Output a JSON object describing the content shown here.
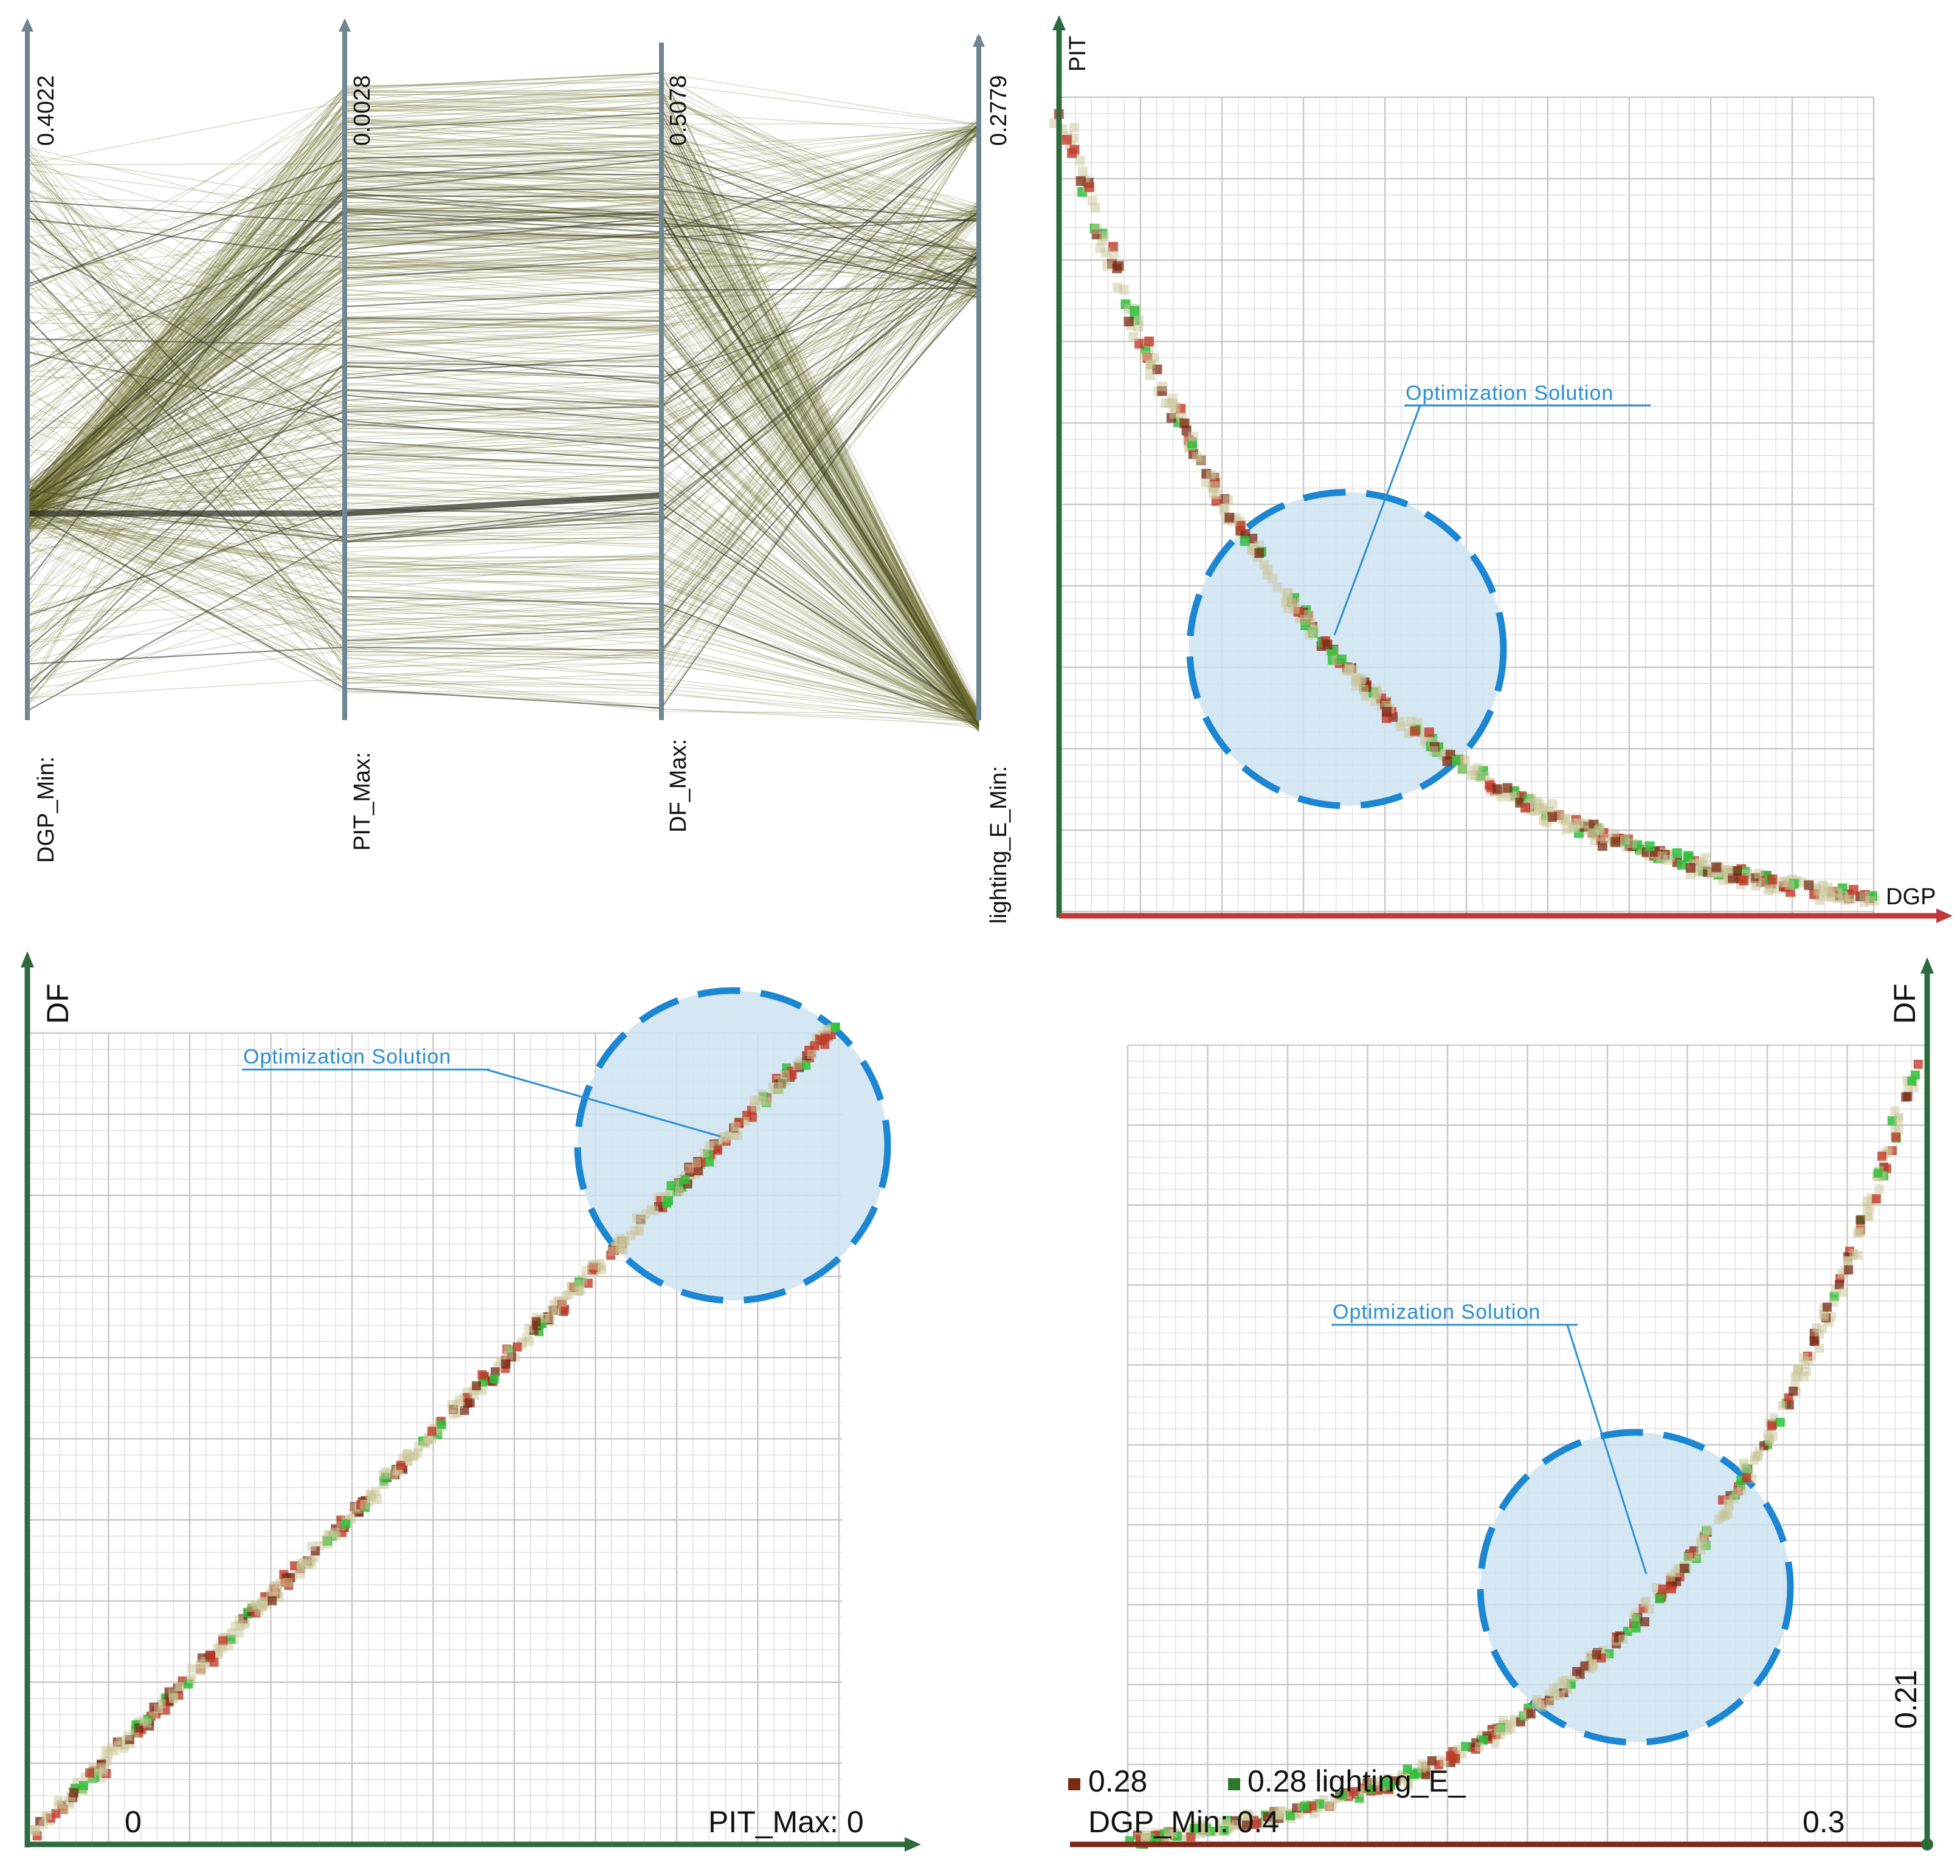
{
  "colors": {
    "pc_line": "#6b6a2c",
    "pc_line_dark": "#2e2e1e",
    "pc_axis": "#6f8590",
    "axis_green": "#2d6b3c",
    "axis_red": "#c0393b",
    "circle_stroke": "#1b86d1",
    "circle_fill": "#cfe3f2",
    "annot_text": "#2a8fd0",
    "point_red": "#c23b2a",
    "point_green": "#2fbf3a",
    "point_brown": "#7b2a14",
    "point_beige": "#c9c69a",
    "grid": "#dcdcdc"
  },
  "chart_data": [
    {
      "type": "parallel_coordinates",
      "axes": [
        {
          "label": "DGP_Min:",
          "max_label": "0.4022"
        },
        {
          "label": "PIT_Max:",
          "max_label": "0.0028"
        },
        {
          "label": "DF_Max:",
          "max_label": "0.5078"
        },
        {
          "label": "lighting_E_Min:",
          "max_label": "0.2779"
        }
      ]
    },
    {
      "type": "scatter",
      "xlabel": "DGP",
      "ylabel": "PIT",
      "annotation": "Optimization Solution",
      "trend": "decreasing convex: PIT falls steeply as DGP increases"
    },
    {
      "type": "scatter",
      "xlabel": "PIT_Max: 0",
      "ylabel": "DF",
      "x_tick": "0",
      "annotation": "Optimization Solution",
      "trend": "near-linear increasing: DF rises with PIT"
    },
    {
      "type": "scatter",
      "xlabel": "DGP_Min: 0.4",
      "ylabel": "DF",
      "x_tick": "0.3",
      "y_tick": "0.21",
      "annotation": "Optimization Solution",
      "legend": [
        {
          "label": "0.28",
          "color": "#7b2a14"
        },
        {
          "label": "0.28 lighting_E_",
          "color": "#2a7a2a"
        }
      ],
      "trend": "increasing convex: DF rises sharply at high DGP"
    }
  ]
}
